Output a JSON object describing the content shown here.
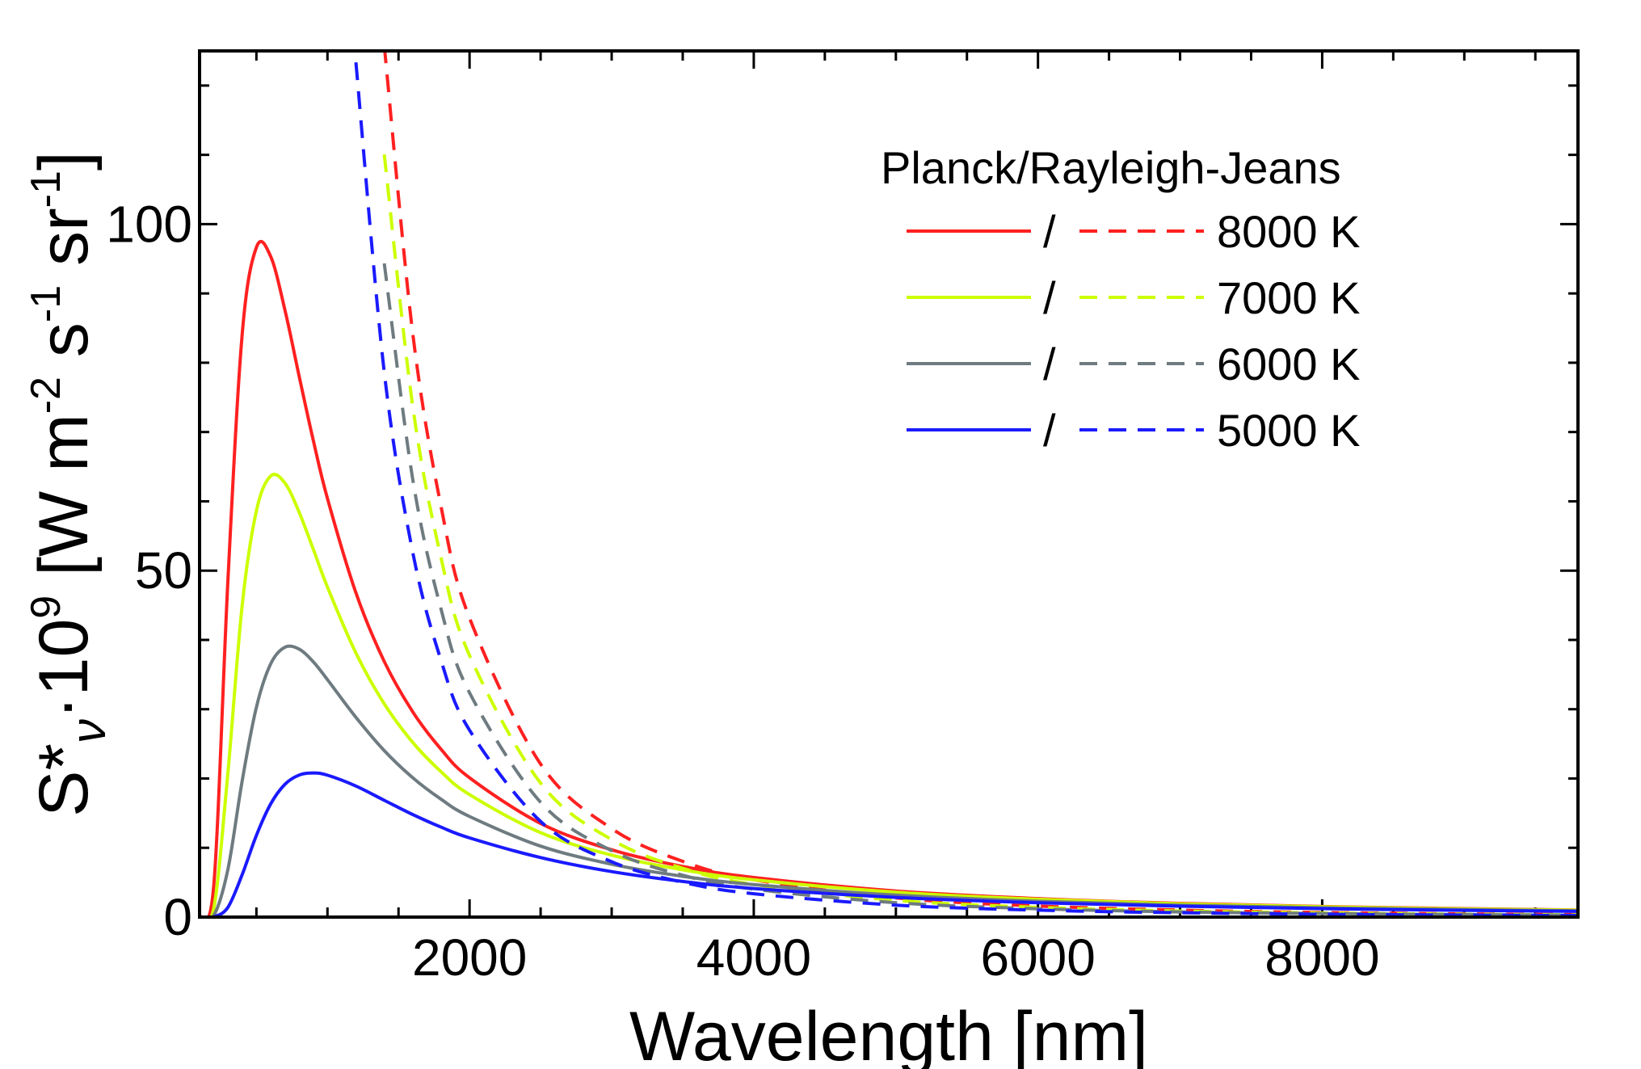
{
  "chart_data": {
    "type": "line",
    "xlabel": "Wavelength [nm]",
    "ylabel_parts": [
      "S*",
      "ν",
      "·10",
      "9",
      " [W m",
      "-2",
      " s",
      "-1",
      " sr",
      "-1",
      "]"
    ],
    "xlim": [
      100,
      9800
    ],
    "ylim": [
      0,
      125
    ],
    "x_ticks": [
      2000,
      4000,
      6000,
      8000
    ],
    "y_ticks": [
      0,
      50,
      100
    ],
    "x": [
      100,
      200,
      300,
      400,
      500,
      600,
      700,
      800,
      900,
      1000,
      1200,
      1400,
      1600,
      1800,
      2000,
      2500,
      3000,
      3500,
      4000,
      5000,
      6000,
      7000,
      8000,
      9000,
      9800
    ],
    "legend_title": "Planck/Rayleigh-Jeans",
    "legend_separator": "/",
    "legend_placement": "top-right",
    "series": [
      {
        "name": "8000 K",
        "color": "#ff2020",
        "planck": [
          0.0,
          4.61,
          48.86,
          84.16,
          96.67,
          95.36,
          87.68,
          78.13,
          68.82,
          60.4,
          46.8,
          36.88,
          29.63,
          24.21,
          20.1,
          13.51,
          9.71,
          7.31,
          5.71,
          3.77,
          2.67,
          1.98,
          1.53,
          1.22,
          1.03
        ],
        "rj": [
          null,
          null,
          null,
          null,
          null,
          null,
          null,
          null,
          null,
          null,
          null,
          125.77,
          84.26,
          59.18,
          43.14,
          22.09,
          12.78,
          8.05,
          5.39,
          2.76,
          1.6,
          1.01,
          0.67,
          0.47,
          0.37
        ]
      },
      {
        "name": "7000 K",
        "color": "#ccff00",
        "planck": [
          0.0,
          1.32,
          21.0,
          45.04,
          58.64,
          63.64,
          62.66,
          58.46,
          53.1,
          47.62,
          38.12,
          30.77,
          25.21,
          20.97,
          17.68,
          12.19,
          8.94,
          6.82,
          5.38,
          3.59,
          2.56,
          1.91,
          1.48,
          1.18,
          1.0
        ],
        "rj": [
          null,
          null,
          null,
          null,
          null,
          null,
          null,
          null,
          null,
          null,
          null,
          110.05,
          73.73,
          51.78,
          37.75,
          19.33,
          11.18,
          7.04,
          4.72,
          2.42,
          1.4,
          0.88,
          0.59,
          0.41,
          0.32
        ]
      },
      {
        "name": "6000 K",
        "color": "#6e7b80",
        "planck": [
          0.0,
          0.24,
          6.95,
          19.7,
          30.31,
          36.52,
          38.94,
          38.68,
          36.85,
          34.26,
          28.83,
          24.02,
          20.11,
          17.0,
          14.52,
          10.24,
          7.63,
          5.89,
          4.69,
          3.17,
          2.29,
          1.72,
          1.34,
          1.07,
          0.91
        ],
        "rj": [
          null,
          null,
          null,
          null,
          null,
          null,
          null,
          null,
          null,
          null,
          null,
          94.33,
          63.2,
          44.39,
          32.36,
          16.57,
          9.59,
          6.04,
          4.04,
          2.07,
          1.2,
          0.75,
          0.51,
          0.36,
          0.27
        ]
      },
      {
        "name": "5000 K",
        "color": "#1a1aff",
        "planck": [
          0.0,
          0.02,
          1.44,
          6.15,
          11.81,
          16.31,
          19.15,
          20.49,
          20.8,
          20.48,
          18.91,
          16.85,
          14.8,
          12.98,
          11.43,
          8.59,
          6.56,
          5.14,
          4.13,
          2.84,
          2.07,
          1.57,
          1.22,
          0.98,
          0.83
        ],
        "rj": [
          null,
          null,
          null,
          null,
          null,
          null,
          null,
          null,
          null,
          null,
          123.34,
          78.61,
          52.66,
          36.99,
          26.96,
          13.81,
          7.99,
          5.03,
          3.37,
          1.73,
          1.0,
          0.63,
          0.42,
          0.3,
          0.23
        ]
      }
    ]
  }
}
